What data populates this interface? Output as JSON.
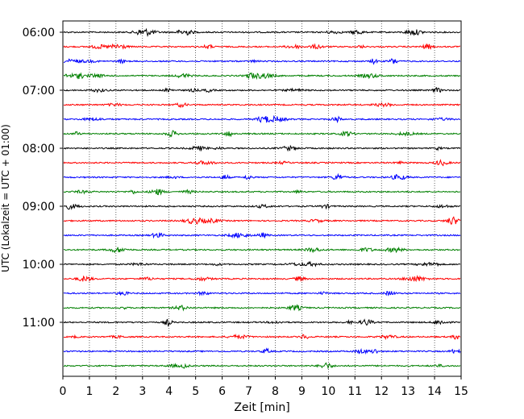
{
  "chart_data": {
    "type": "line",
    "title": "",
    "xlabel": "Zeit  [min]",
    "ylabel": "UTC (Lokalzeit = UTC + 01:00)",
    "xlim": [
      0,
      15
    ],
    "x_ticks": [
      "0",
      "1",
      "2",
      "3",
      "4",
      "5",
      "6",
      "7",
      "8",
      "9",
      "10",
      "11",
      "12",
      "13",
      "14",
      "15"
    ],
    "y_ticks": [
      "06:00",
      "07:00",
      "08:00",
      "09:00",
      "10:00",
      "11:00"
    ],
    "trace_interval_min": 15,
    "trace_start": "06:00",
    "trace_count": 24,
    "trace_colors": [
      "#000000",
      "#ff0000",
      "#0000ff",
      "#008000"
    ],
    "vertical_grid": "dotted",
    "legend": "none"
  }
}
